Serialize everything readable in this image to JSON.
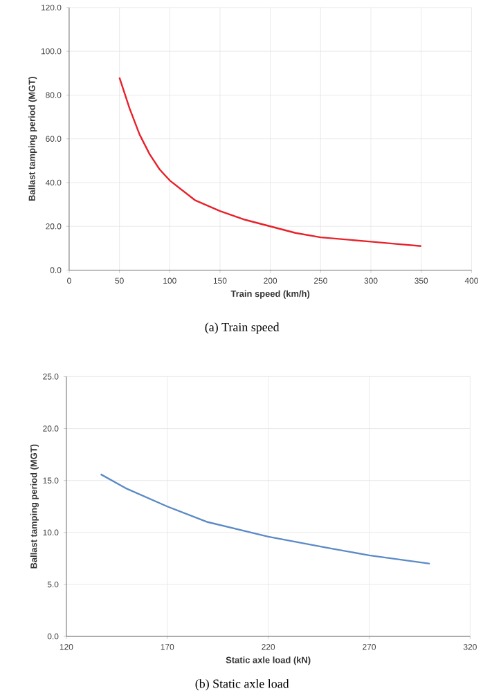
{
  "chart_data": [
    {
      "type": "line",
      "xlabel": "Train speed (km/h)",
      "ylabel": "Ballast tamping period (MGT)",
      "annotations": [
        "(a) Train speed"
      ],
      "series": [
        {
          "color": "#e8202a",
          "x": [
            50,
            60,
            70,
            80,
            90,
            100,
            125,
            150,
            175,
            200,
            225,
            250,
            275,
            300,
            325,
            350
          ],
          "values": [
            88,
            74,
            62,
            53,
            46,
            41,
            32,
            27,
            23,
            20,
            17,
            15,
            14,
            13,
            12,
            11
          ]
        }
      ],
      "xlim": [
        0,
        400
      ],
      "ylim": [
        0,
        120
      ],
      "xticks": [
        0,
        50,
        100,
        150,
        200,
        250,
        300,
        350,
        400
      ],
      "yticks": [
        {
          "value": 0,
          "label": "0.0"
        },
        {
          "value": 20,
          "label": "20.0"
        },
        {
          "value": 40,
          "label": "40.0"
        },
        {
          "value": 60,
          "label": "60.0"
        },
        {
          "value": 80,
          "label": "80.0"
        },
        {
          "value": 100,
          "label": "100.0"
        },
        {
          "value": 120,
          "label": "120.0"
        }
      ],
      "grid": true,
      "marker": "none",
      "line_style": "solid"
    },
    {
      "type": "line",
      "xlabel": "Static axle load (kN)",
      "ylabel": "Ballast tamping period (MGT)",
      "annotations": [
        "(b) Static axle load"
      ],
      "series": [
        {
          "color": "#5b8ac6",
          "x": [
            137,
            150,
            170,
            190,
            220,
            250,
            270,
            300
          ],
          "values": [
            15.6,
            14.2,
            12.5,
            11.0,
            9.6,
            8.5,
            7.8,
            7.0
          ]
        }
      ],
      "xlim": [
        120,
        320
      ],
      "ylim": [
        0,
        25
      ],
      "xticks": [
        120,
        170,
        220,
        270,
        320
      ],
      "yticks": [
        {
          "value": 0,
          "label": "0.0"
        },
        {
          "value": 5,
          "label": "5.0"
        },
        {
          "value": 10,
          "label": "10.0"
        },
        {
          "value": 15,
          "label": "15.0"
        },
        {
          "value": 20,
          "label": "20.0"
        },
        {
          "value": 25,
          "label": "25.0"
        }
      ],
      "grid": true,
      "marker": "none",
      "line_style": "solid"
    }
  ]
}
